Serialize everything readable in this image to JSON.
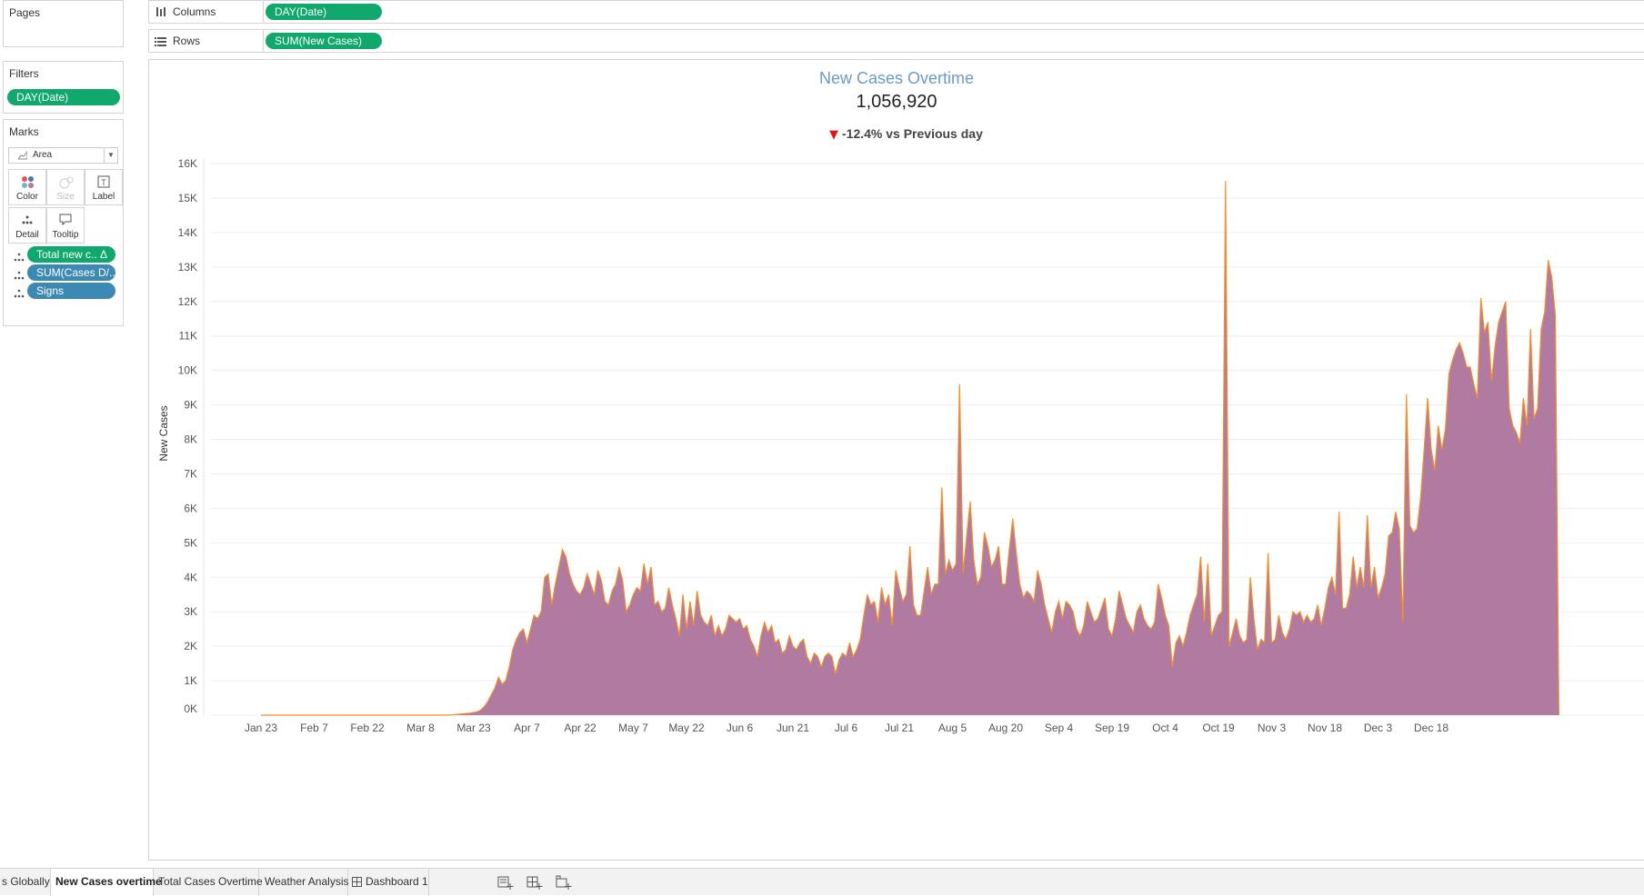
{
  "pages": {
    "title": "Pages"
  },
  "columns": {
    "label": "Columns",
    "pill": "DAY(Date)"
  },
  "rows": {
    "label": "Rows",
    "pill": "SUM(New Cases)"
  },
  "filters": {
    "title": "Filters",
    "pill": "DAY(Date)"
  },
  "marks": {
    "title": "Marks",
    "type": "Area",
    "cards": [
      "Color",
      "Size",
      "Label",
      "Detail",
      "Tooltip"
    ],
    "fields": [
      {
        "label": "Total new c..",
        "delta": "Δ"
      },
      {
        "label": "SUM(Cases D/.."
      },
      {
        "label": "Signs"
      }
    ]
  },
  "tabs": [
    {
      "label": "s Globally"
    },
    {
      "label": "New Cases overtime",
      "active": true
    },
    {
      "label": "Total Cases Overtime"
    },
    {
      "label": "Weather Analysis"
    },
    {
      "label": "Dashboard 1"
    }
  ],
  "colors": {
    "area": "#b07aa1",
    "line": "#f28e2b",
    "pill_green": "#11a86e",
    "pill_blue": "#3c8ab3",
    "title": "#6a9bc3",
    "down": "#d7191c"
  },
  "chart_data": {
    "type": "area",
    "title": "New Cases Overtime",
    "kpi": "1,056,920",
    "change_arrow": "▼",
    "change_text": "-12.4% vs Previous day",
    "ylabel": "New Cases",
    "xlabel": "",
    "ylim": [
      0,
      16000
    ],
    "y_ticks": [
      "0K",
      "1K",
      "2K",
      "3K",
      "4K",
      "5K",
      "6K",
      "7K",
      "8K",
      "9K",
      "10K",
      "11K",
      "12K",
      "13K",
      "14K",
      "15K",
      "16K"
    ],
    "x_ticks": [
      "Jan 23",
      "Feb 7",
      "Feb 22",
      "Mar 8",
      "Mar 23",
      "Apr 7",
      "Apr 22",
      "May 7",
      "May 22",
      "Jun 6",
      "Jun 21",
      "Jul 6",
      "Jul 21",
      "Aug 5",
      "Aug 20",
      "Sep 4",
      "Sep 19",
      "Oct 4",
      "Oct 19",
      "Nov 3",
      "Nov 18",
      "Dec 3",
      "Dec 18"
    ],
    "start_date": "Jan 23",
    "values": [
      0,
      0,
      0,
      0,
      0,
      0,
      0,
      0,
      0,
      0,
      0,
      0,
      0,
      0,
      0,
      0,
      0,
      0,
      0,
      0,
      0,
      0,
      0,
      0,
      0,
      0,
      0,
      0,
      0,
      0,
      0,
      0,
      0,
      0,
      0,
      0,
      0,
      0,
      0,
      0,
      0,
      0,
      0,
      0,
      0,
      0,
      0,
      0,
      0,
      0,
      0,
      0,
      0,
      0,
      10,
      20,
      30,
      40,
      50,
      60,
      80,
      100,
      150,
      250,
      400,
      600,
      800,
      1100,
      900,
      1000,
      1400,
      1900,
      2200,
      2400,
      2500,
      2100,
      2500,
      2900,
      2800,
      3000,
      4000,
      4100,
      3200,
      3800,
      4300,
      4800,
      4600,
      4100,
      3800,
      3600,
      3500,
      3700,
      4100,
      3800,
      3500,
      4200,
      3900,
      3300,
      3200,
      3600,
      3800,
      4300,
      3900,
      3000,
      3200,
      3500,
      3700,
      3600,
      4400,
      3800,
      4300,
      3200,
      3300,
      3000,
      3100,
      3700,
      3200,
      2800,
      2300,
      3500,
      2500,
      3300,
      2600,
      3600,
      2900,
      2700,
      2600,
      2900,
      2300,
      2600,
      2300,
      2500,
      2900,
      2800,
      2700,
      2800,
      2500,
      2600,
      2200,
      2000,
      1700,
      2300,
      2700,
      2400,
      2600,
      2100,
      2200,
      1800,
      1900,
      2300,
      2000,
      1900,
      2100,
      2200,
      1700,
      1500,
      1800,
      1700,
      1400,
      1700,
      1800,
      1700,
      1200,
      1600,
      1800,
      1700,
      2100,
      1700,
      1900,
      2200,
      2900,
      3500,
      3200,
      3300,
      2700,
      3700,
      3200,
      3500,
      2600,
      4200,
      3700,
      3300,
      3500,
      4900,
      3200,
      2900,
      2900,
      3600,
      4300,
      3500,
      3800,
      3800,
      6600,
      4100,
      4500,
      4200,
      4400,
      9600,
      4100,
      5200,
      6200,
      4500,
      3800,
      4000,
      5300,
      4900,
      4300,
      4500,
      4900,
      3800,
      3800,
      4800,
      5700,
      4700,
      3800,
      3400,
      3600,
      3500,
      3300,
      4200,
      3800,
      3200,
      2800,
      2400,
      3000,
      3300,
      2800,
      3300,
      3200,
      3000,
      2500,
      2300,
      2600,
      3300,
      3000,
      2700,
      2800,
      3100,
      3400,
      2500,
      2300,
      2800,
      3600,
      3200,
      2800,
      2600,
      2400,
      3000,
      3200,
      2800,
      2600,
      2500,
      2700,
      3800,
      3400,
      2900,
      2600,
      1400,
      2100,
      2300,
      2000,
      2400,
      2900,
      3200,
      3500,
      4600,
      2700,
      4400,
      2300,
      2600,
      2900,
      3000,
      15500,
      2000,
      2400,
      2800,
      2300,
      2100,
      2200,
      4000,
      2800,
      1900,
      2200,
      2100,
      4700,
      2100,
      2200,
      2900,
      2400,
      2200,
      2500,
      3000,
      2900,
      3000,
      2700,
      2900,
      2700,
      2800,
      3200,
      2600,
      3100,
      3700,
      4000,
      3500,
      5900,
      3100,
      3100,
      3500,
      4600,
      3700,
      4300,
      3700,
      5800,
      3700,
      4300,
      3400,
      3700,
      4100,
      5200,
      5300,
      5900,
      5400,
      2700,
      9300,
      5500,
      5300,
      5400,
      6300,
      7700,
      9200,
      7700,
      7100,
      8400,
      7700,
      8300,
      9900,
      10300,
      10600,
      10800,
      10500,
      10100,
      10100,
      9600,
      9200,
      12100,
      11100,
      11400,
      9700,
      10700,
      11400,
      11700,
      12000,
      8900,
      8400,
      8200,
      7900,
      9200,
      8400,
      11200,
      8600,
      8900,
      11200,
      11700,
      13200,
      12700,
      11600,
      0
    ]
  }
}
